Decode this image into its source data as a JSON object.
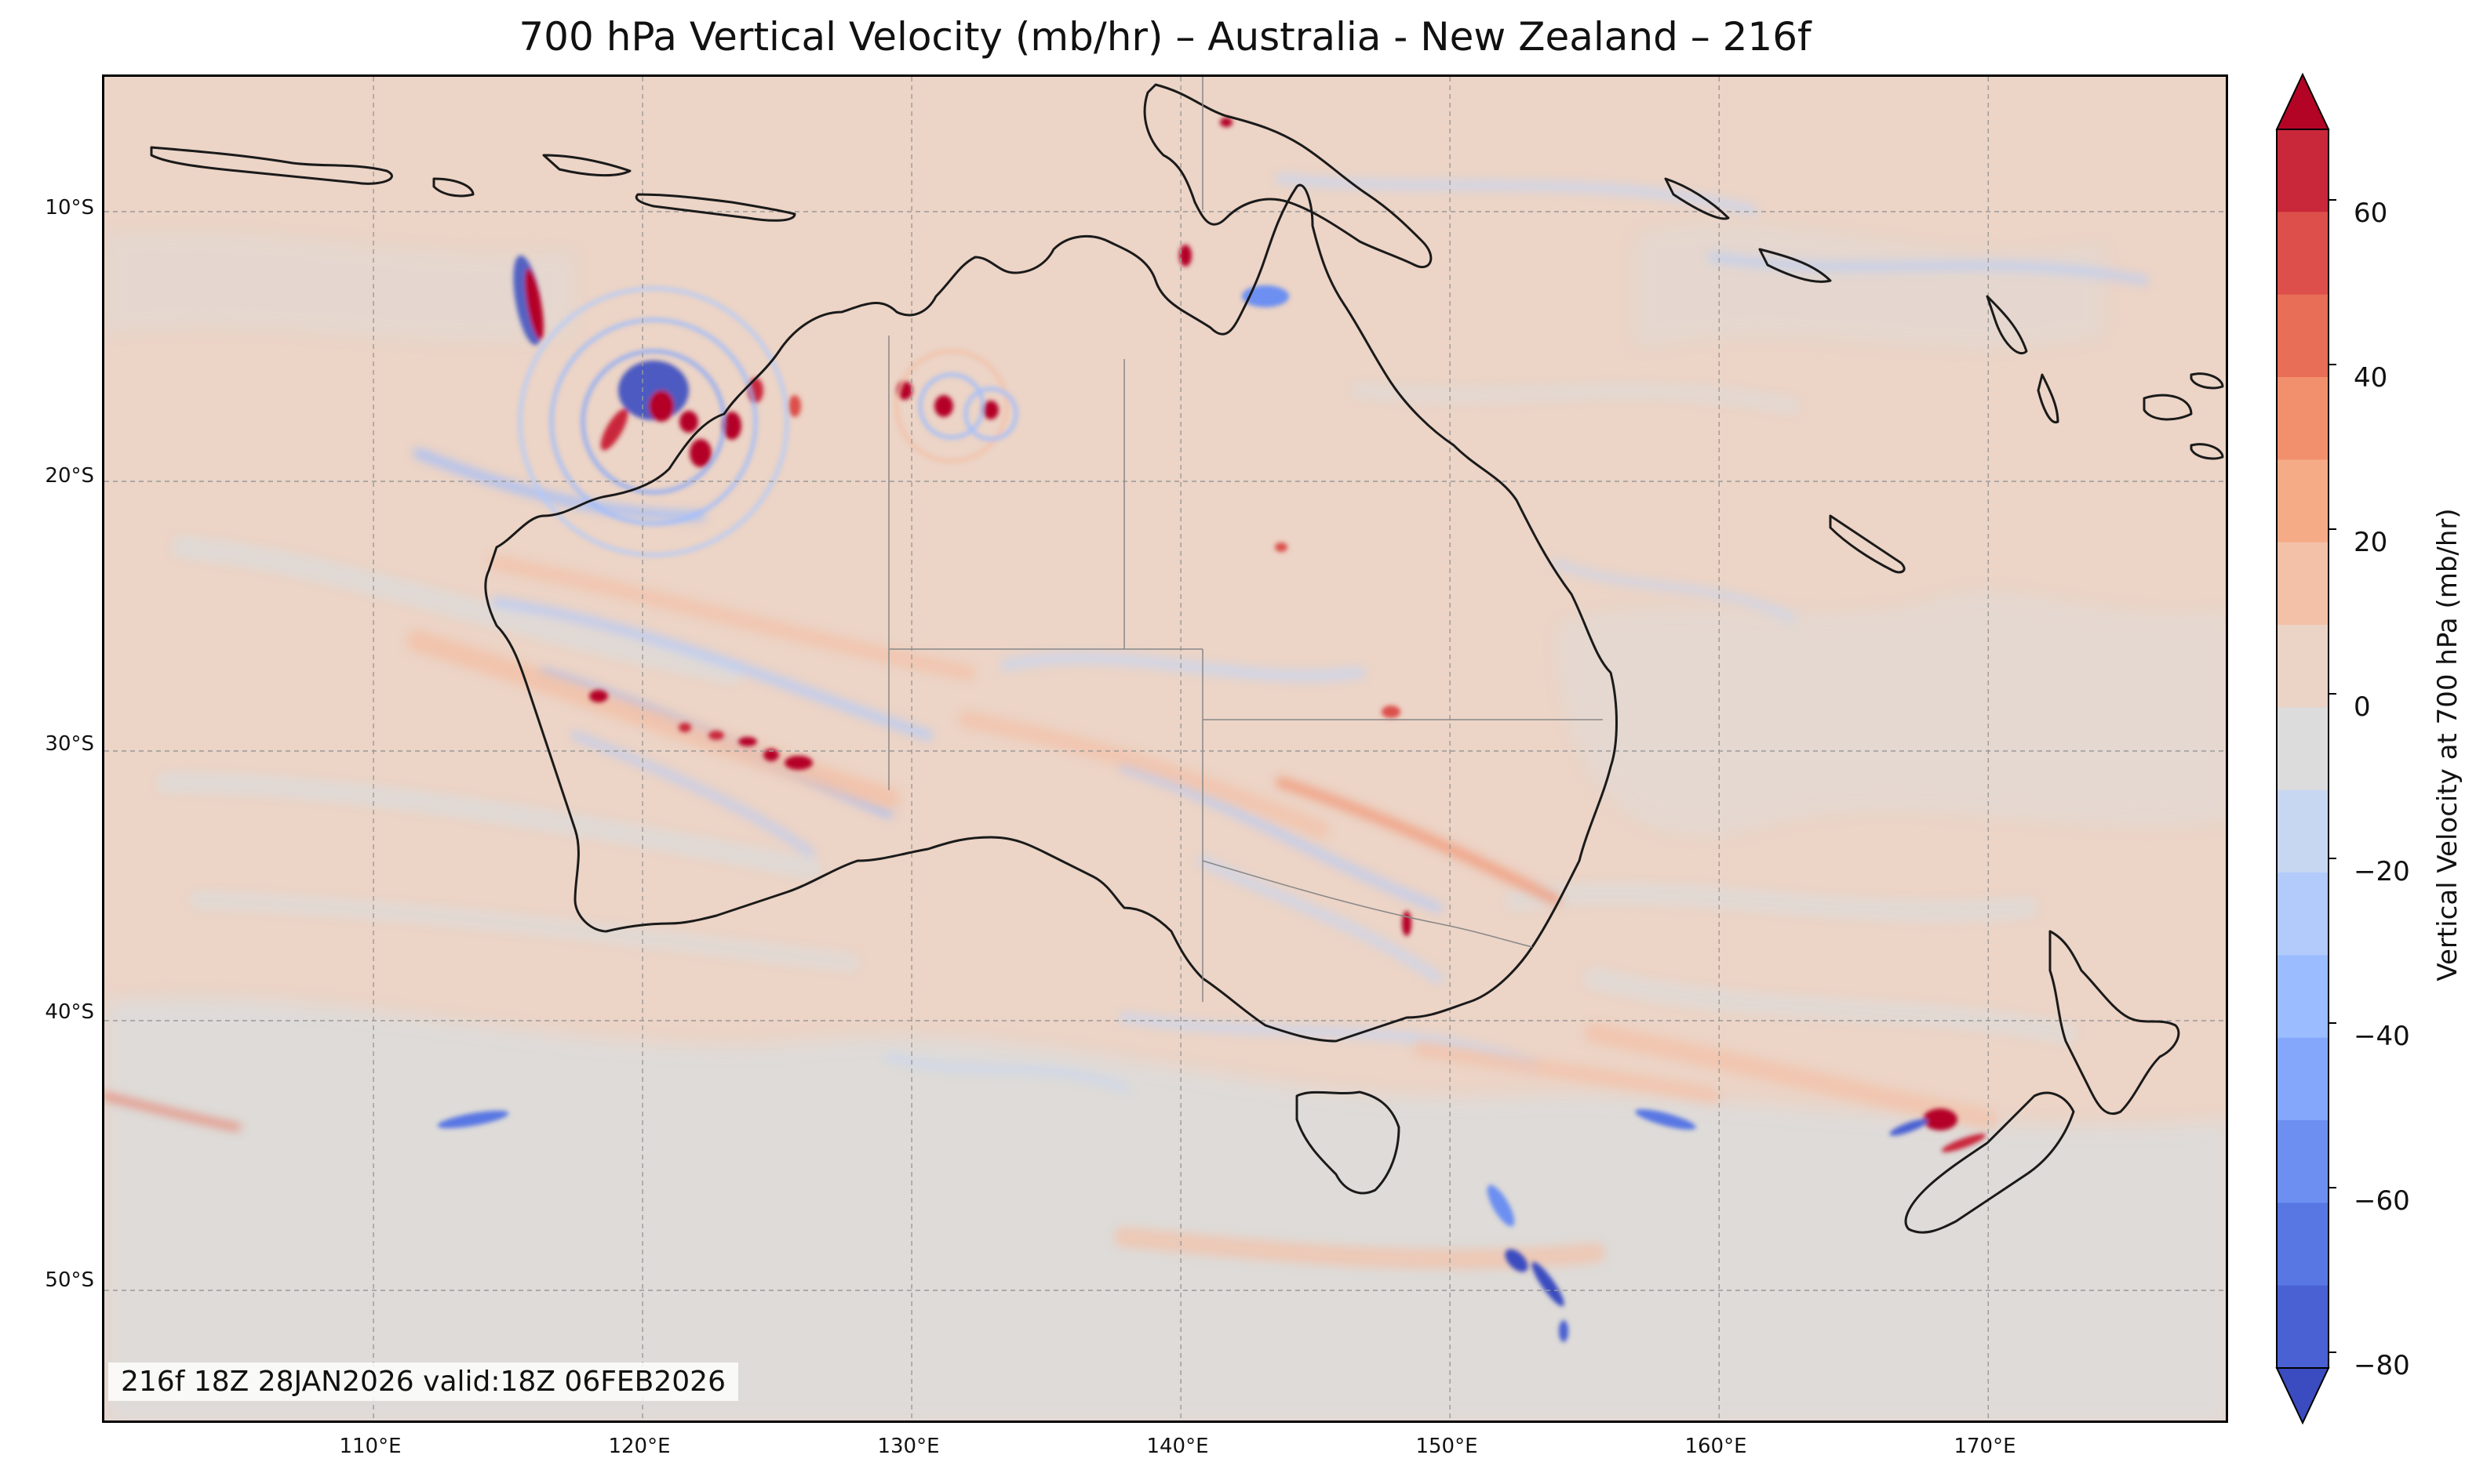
{
  "title": "700 hPa Vertical Velocity (mb/hr) – Australia - New Zealand – 216f",
  "info_box": "216f 18Z 28JAN2026 valid:18Z 06FEB2026",
  "lat_labels": [
    "10°S",
    "20°S",
    "30°S",
    "40°S",
    "50°S"
  ],
  "lon_labels": [
    "110°E",
    "120°E",
    "130°E",
    "140°E",
    "150°E",
    "160°E",
    "170°E"
  ],
  "colorbar": {
    "label": "Vertical Velocity at 700 hPa (mb/hr)",
    "ticks": [
      "60",
      "40",
      "20",
      "0",
      "−20",
      "−40",
      "−60",
      "−80"
    ],
    "min": -80,
    "max": 70,
    "colors_high_to_low": [
      "#b40426",
      "#c9283a",
      "#dc4f4b",
      "#e86e57",
      "#f2906d",
      "#f6ab87",
      "#f3c1a8",
      "#ebd3c6",
      "#dddcdc",
      "#c7d6f1",
      "#b2cbfb",
      "#9bbcff",
      "#84a7fc",
      "#6c8ff1",
      "#5977e3",
      "#4961d2",
      "#3b4cc0"
    ]
  },
  "map": {
    "lon_range": [
      100,
      179
    ],
    "lat_range": [
      -55,
      -5
    ],
    "background_color": "#ecd4c6",
    "coastline_color": "#1a1a1a",
    "gridlines": "dashed"
  }
}
